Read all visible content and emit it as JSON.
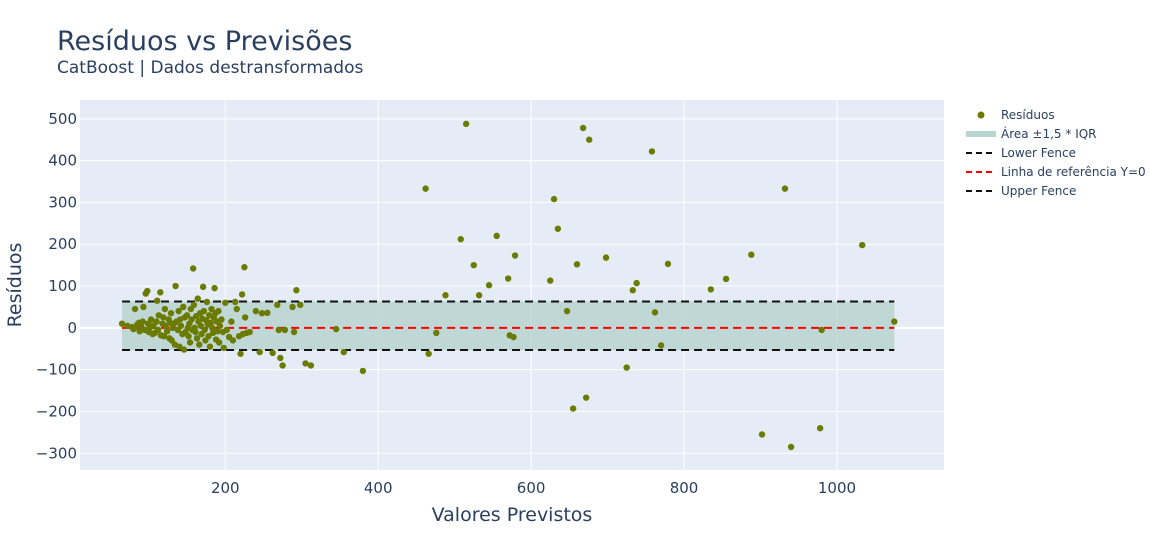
{
  "chart_data": {
    "type": "scatter",
    "title": "Resíduos vs Previsões",
    "subtitle": "CatBoost | Dados destransformados",
    "xlabel": "Valores Previstos",
    "ylabel": "Resíduos",
    "xlim": [
      10,
      1140
    ],
    "ylim": [
      -340,
      545
    ],
    "x_ticks": [
      200,
      400,
      600,
      800,
      1000
    ],
    "x_tick_labels": [
      "200",
      "400",
      "600",
      "800",
      "1000"
    ],
    "y_ticks": [
      -300,
      -200,
      -100,
      0,
      100,
      200,
      300,
      400,
      500
    ],
    "y_tick_labels": [
      "−300",
      "−200",
      "−100",
      "0",
      "100",
      "200",
      "300",
      "400",
      "500"
    ],
    "grid": true,
    "legend_position": "top-right-outside",
    "colors": {
      "plot_background": "#e5ecf6",
      "grid": "#ffffff",
      "points": "#6b7b00",
      "iqr_band": "#b8d4cf",
      "fence": "#111111",
      "reference": "#ff0000",
      "text": "#2a3f5f"
    },
    "iqr_band": {
      "x_range": [
        65,
        1075
      ],
      "y_range": [
        -53,
        63
      ]
    },
    "lower_fence": -53,
    "upper_fence": 63,
    "reference_line": 0,
    "legend": [
      {
        "label": "Resíduos",
        "kind": "marker"
      },
      {
        "label": "Área ±1,5 * IQR",
        "kind": "band"
      },
      {
        "label": "Lower Fence",
        "kind": "dash-black"
      },
      {
        "label": "Linha de referência Y=0",
        "kind": "dash-red"
      },
      {
        "label": "Upper Fence",
        "kind": "dash-black"
      }
    ],
    "series": [
      {
        "name": "Resíduos",
        "points": [
          [
            65,
            10
          ],
          [
            72,
            5
          ],
          [
            78,
            2
          ],
          [
            80,
            -3
          ],
          [
            82,
            45
          ],
          [
            85,
            8
          ],
          [
            87,
            12
          ],
          [
            88,
            -8
          ],
          [
            90,
            3
          ],
          [
            92,
            15
          ],
          [
            93,
            50
          ],
          [
            95,
            -5
          ],
          [
            96,
            82
          ],
          [
            98,
            88
          ],
          [
            99,
            10
          ],
          [
            100,
            -10
          ],
          [
            101,
            0
          ],
          [
            103,
            20
          ],
          [
            105,
            -15
          ],
          [
            106,
            5
          ],
          [
            108,
            -12
          ],
          [
            110,
            15
          ],
          [
            111,
            65
          ],
          [
            112,
            -5
          ],
          [
            113,
            30
          ],
          [
            115,
            85
          ],
          [
            116,
            -18
          ],
          [
            118,
            10
          ],
          [
            119,
            25
          ],
          [
            120,
            -20
          ],
          [
            121,
            45
          ],
          [
            122,
            5
          ],
          [
            124,
            -8
          ],
          [
            126,
            20
          ],
          [
            127,
            -25
          ],
          [
            128,
            12
          ],
          [
            129,
            35
          ],
          [
            130,
            -30
          ],
          [
            131,
            0
          ],
          [
            133,
            10
          ],
          [
            134,
            -40
          ],
          [
            135,
            100
          ],
          [
            136,
            15
          ],
          [
            138,
            -5
          ],
          [
            139,
            40
          ],
          [
            140,
            -45
          ],
          [
            141,
            20
          ],
          [
            142,
            5
          ],
          [
            144,
            -15
          ],
          [
            145,
            50
          ],
          [
            146,
            -52
          ],
          [
            147,
            25
          ],
          [
            148,
            -10
          ],
          [
            150,
            30
          ],
          [
            151,
            0
          ],
          [
            152,
            -20
          ],
          [
            153,
            10
          ],
          [
            154,
            -35
          ],
          [
            155,
            45
          ],
          [
            156,
            20
          ],
          [
            157,
            -5
          ],
          [
            158,
            142
          ],
          [
            159,
            55
          ],
          [
            160,
            0
          ],
          [
            161,
            -10
          ],
          [
            162,
            28
          ],
          [
            163,
            -25
          ],
          [
            164,
            70
          ],
          [
            165,
            15
          ],
          [
            166,
            -40
          ],
          [
            167,
            35
          ],
          [
            168,
            5
          ],
          [
            169,
            -15
          ],
          [
            170,
            22
          ],
          [
            171,
            98
          ],
          [
            172,
            40
          ],
          [
            173,
            -5
          ],
          [
            174,
            -30
          ],
          [
            175,
            18
          ],
          [
            176,
            62
          ],
          [
            177,
            8
          ],
          [
            178,
            -20
          ],
          [
            179,
            30
          ],
          [
            180,
            -45
          ],
          [
            181,
            12
          ],
          [
            182,
            45
          ],
          [
            183,
            0
          ],
          [
            184,
            -12
          ],
          [
            185,
            25
          ],
          [
            186,
            95
          ],
          [
            187,
            35
          ],
          [
            188,
            -28
          ],
          [
            189,
            15
          ],
          [
            190,
            -8
          ],
          [
            191,
            40
          ],
          [
            192,
            -35
          ],
          [
            193,
            5
          ],
          [
            195,
            20
          ],
          [
            197,
            -10
          ],
          [
            198,
            -48
          ],
          [
            200,
            60
          ],
          [
            202,
            -5
          ],
          [
            205,
            -22
          ],
          [
            208,
            15
          ],
          [
            210,
            -30
          ],
          [
            213,
            62
          ],
          [
            215,
            45
          ],
          [
            218,
            -20
          ],
          [
            220,
            -62
          ],
          [
            222,
            80
          ],
          [
            223,
            -15
          ],
          [
            225,
            145
          ],
          [
            226,
            25
          ],
          [
            228,
            -12
          ],
          [
            232,
            -10
          ],
          [
            240,
            40
          ],
          [
            245,
            -58
          ],
          [
            248,
            35
          ],
          [
            255,
            36
          ],
          [
            262,
            -60
          ],
          [
            268,
            55
          ],
          [
            270,
            -5
          ],
          [
            272,
            -72
          ],
          [
            275,
            -90
          ],
          [
            278,
            -5
          ],
          [
            288,
            50
          ],
          [
            290,
            -10
          ],
          [
            293,
            90
          ],
          [
            298,
            55
          ],
          [
            305,
            -85
          ],
          [
            312,
            -90
          ],
          [
            345,
            -3
          ],
          [
            355,
            -58
          ],
          [
            380,
            -103
          ],
          [
            462,
            333
          ],
          [
            466,
            -62
          ],
          [
            476,
            -12
          ],
          [
            488,
            78
          ],
          [
            508,
            212
          ],
          [
            515,
            488
          ],
          [
            525,
            150
          ],
          [
            532,
            78
          ],
          [
            545,
            102
          ],
          [
            555,
            220
          ],
          [
            570,
            118
          ],
          [
            572,
            -18
          ],
          [
            577,
            -22
          ],
          [
            579,
            173
          ],
          [
            625,
            113
          ],
          [
            630,
            308
          ],
          [
            635,
            237
          ],
          [
            647,
            40
          ],
          [
            655,
            -193
          ],
          [
            660,
            152
          ],
          [
            668,
            478
          ],
          [
            672,
            -167
          ],
          [
            676,
            450
          ],
          [
            698,
            168
          ],
          [
            725,
            -95
          ],
          [
            733,
            90
          ],
          [
            738,
            107
          ],
          [
            758,
            422
          ],
          [
            762,
            37
          ],
          [
            770,
            -42
          ],
          [
            779,
            153
          ],
          [
            835,
            92
          ],
          [
            855,
            117
          ],
          [
            888,
            175
          ],
          [
            902,
            -255
          ],
          [
            932,
            333
          ],
          [
            940,
            -285
          ],
          [
            978,
            -240
          ],
          [
            980,
            -5
          ],
          [
            1033,
            198
          ],
          [
            1075,
            15
          ]
        ]
      }
    ]
  }
}
